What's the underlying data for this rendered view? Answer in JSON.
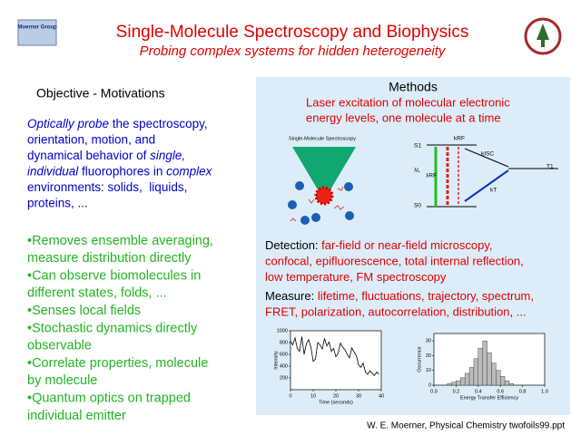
{
  "header": {
    "title": "Single-Molecule Spectroscopy and Biophysics",
    "subtitle": "Probing complex systems for hidden heterogeneity",
    "logo": "Moerner Group"
  },
  "objective": {
    "heading": "Objective - Motivations",
    "intro": [
      [
        {
          "text": "Optically probe",
          "italic": true
        },
        {
          "text": " the spectroscopy,"
        }
      ],
      [
        {
          "text": "orientation, motion, and"
        }
      ],
      [
        {
          "text": "dynamical behavior of "
        },
        {
          "text": "single,",
          "italic": true
        }
      ],
      [
        {
          "text": "individual",
          "italic": true
        },
        {
          "text": " fluorophores in "
        },
        {
          "text": "complex",
          "italic": true
        }
      ],
      [
        {
          "text": "environments: solids,  liquids,"
        }
      ],
      [
        {
          "text": "proteins, ..."
        }
      ]
    ],
    "bullets": [
      [
        "•Removes ensemble averaging,",
        "measure distribution directly"
      ],
      [
        "•Can observe biomolecules in",
        "different states, folds, ..."
      ],
      [
        "•Senses local fields"
      ],
      [
        "•Stochastic dynamics directly",
        "observable"
      ],
      [
        "•Correlate properties, molecule",
        "by molecule"
      ],
      [
        "•Quantum optics on trapped",
        "individual emitter"
      ]
    ]
  },
  "methods": {
    "heading": "Methods",
    "intro": [
      "Laser excitation of molecular electronic",
      "energy levels, one molecule at a time"
    ],
    "figure_caption": "Single-Molecule Spectroscopy",
    "levels": {
      "s1": "S1",
      "s0": "S0",
      "t1": "T1",
      "laser": "λL",
      "emission": "λRF",
      "k_rf": "kRF",
      "k_isc": "kISC",
      "k_t": "kT"
    },
    "detection": {
      "label": "Detection:",
      "lines": [
        " far-field or near-field microscopy,",
        "confocal, epifluorescence, total internal reflection,",
        "low temperature, FM spectroscopy"
      ]
    },
    "measure": {
      "label": "Measure:",
      "lines": [
        " lifetime, fluctuations, trajectory, spectrum,",
        "FRET, polarization, autocorrelation, distribution, ..."
      ]
    },
    "trajectory": {
      "xlabel": "Time (seconds)",
      "ylabel": "Intensity",
      "xlim": [
        0,
        40
      ],
      "ylim": [
        0,
        1000
      ],
      "xticks": [
        0,
        10,
        20,
        30,
        40
      ],
      "yticks": [
        200,
        400,
        600,
        800,
        1000
      ],
      "x": [
        0,
        1,
        2,
        3,
        4,
        5,
        6,
        7,
        8,
        9,
        10,
        11,
        12,
        13,
        14,
        15,
        16,
        17,
        18,
        19,
        20,
        21,
        22,
        23,
        24,
        25,
        26,
        27,
        28,
        29,
        30,
        31,
        32,
        33,
        34,
        35,
        36,
        37,
        38,
        39
      ],
      "values": [
        820,
        760,
        880,
        700,
        650,
        900,
        600,
        780,
        850,
        720,
        480,
        520,
        800,
        760,
        690,
        870,
        740,
        810,
        650,
        700,
        560,
        620,
        790,
        720,
        680,
        600,
        540,
        710,
        640,
        580,
        420,
        380,
        450,
        300,
        260,
        320,
        280,
        240,
        300,
        260
      ]
    },
    "histogram": {
      "xlabel": "Energy Transfer Efficiency",
      "ylabel": "Occurrence",
      "xlim": [
        0,
        1
      ],
      "ylim": [
        0,
        35
      ],
      "xticks": [
        {
          "value": 0,
          "label": "0.0"
        },
        0.2,
        0.4,
        0.6,
        0.8,
        {
          "value": 1,
          "label": "1.0"
        }
      ],
      "yticks": [
        0,
        10,
        20,
        30
      ],
      "bins": [
        0.12,
        0.16,
        0.2,
        0.24,
        0.28,
        0.32,
        0.36,
        0.4,
        0.44,
        0.48,
        0.52,
        0.56,
        0.6,
        0.64,
        0.68,
        0.72
      ],
      "counts": [
        1,
        2,
        3,
        5,
        8,
        12,
        18,
        25,
        30,
        22,
        15,
        10,
        6,
        3,
        1
      ]
    }
  },
  "footer": "W. E. Moerner, Physical Chemistry twofoils99.ppt"
}
